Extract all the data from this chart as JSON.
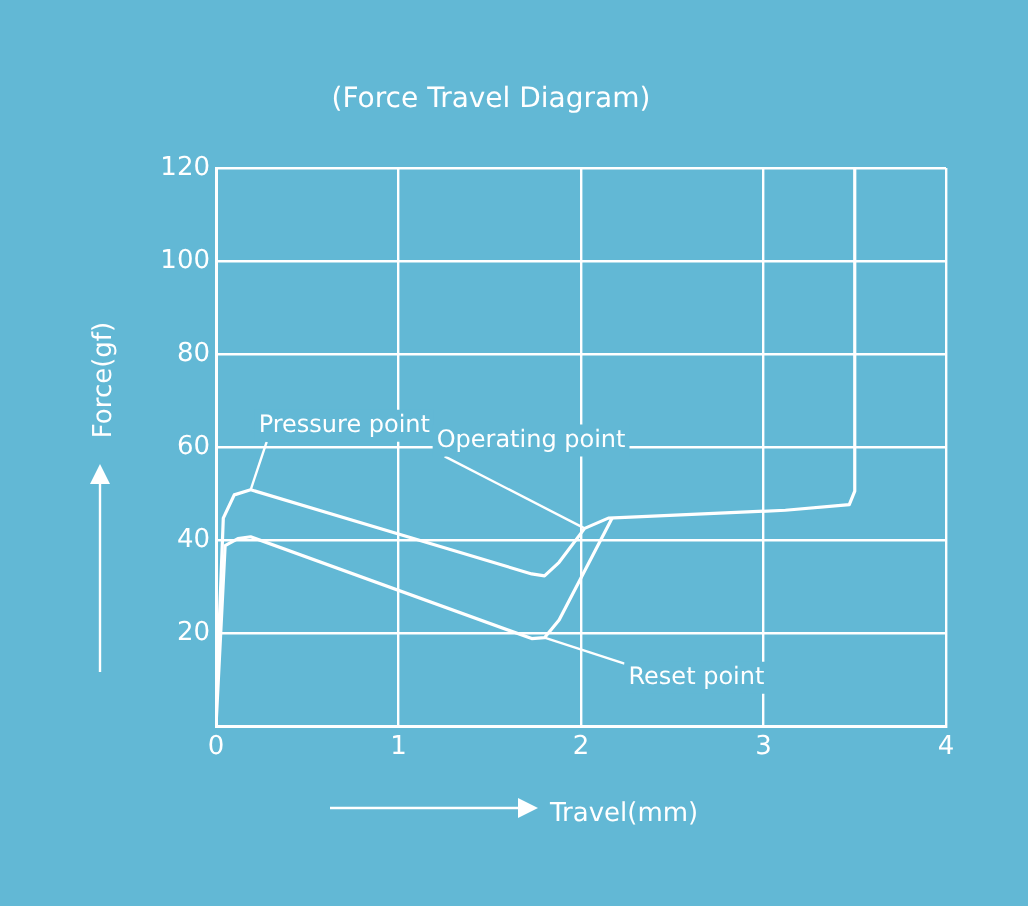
{
  "chart_data": {
    "type": "line",
    "title": "(Force Travel Diagram)",
    "xlabel": "Travel(mm)",
    "ylabel": "Force(gf)",
    "series": [
      {
        "color": "#ffffff",
        "x": [
          0,
          0.04,
          0.1,
          0.19,
          1.73,
          1.8,
          1.88,
          2.02,
          2.15,
          3.12,
          3.47,
          3.5,
          3.5
        ],
        "values": [
          4,
          44.7,
          49.7,
          50.8,
          32.7,
          32.3,
          35.2,
          42.5,
          44.7,
          46.4,
          47.6,
          50.5,
          120
        ]
      },
      {
        "color": "#ffffff",
        "x": [
          0,
          0.05,
          0.12,
          0.19,
          1.73,
          1.8,
          1.88,
          2.17
        ],
        "values": [
          0,
          38.8,
          40.3,
          40.7,
          18.8,
          19,
          22.8,
          44.7
        ]
      }
    ],
    "annotations": [
      {
        "text": "Pressure point",
        "x": 0.19,
        "y": 50.8
      },
      {
        "text": "Operating point",
        "x": 2.02,
        "y": 42.5
      },
      {
        "text": "Reset point",
        "x": 1.8,
        "y": 19
      }
    ],
    "xlim": [
      0,
      4
    ],
    "xticks": [
      0,
      1,
      2,
      3,
      4
    ],
    "ylim": [
      0,
      120
    ],
    "yticks": [
      {
        "value": 0,
        "label": null
      },
      20,
      40,
      60,
      80,
      100,
      120
    ],
    "grid": true,
    "marker": "none",
    "line_style": "solid",
    "legend": false
  }
}
